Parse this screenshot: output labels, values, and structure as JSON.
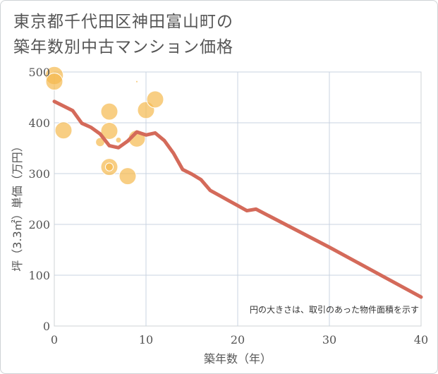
{
  "title_lines": [
    "東京都千代田区神田富山町の",
    "築年数別中古マンション価格"
  ],
  "chart_data": {
    "type": "scatter+line",
    "title": "東京都千代田区神田富山町の築年数別中古マンション価格",
    "xlabel": "築年数（年）",
    "ylabel": "坪（3.3㎡）単価（万円）",
    "xlim": [
      0,
      40
    ],
    "ylim": [
      0,
      500
    ],
    "x_ticks": [
      0,
      10,
      20,
      30,
      40
    ],
    "y_ticks": [
      0,
      100,
      200,
      300,
      400,
      500
    ],
    "grid": true,
    "note": "円の大きさは、取引のあった物件面積を示す",
    "colors": {
      "bubble": "#f5b94f",
      "line": "#d46a5a"
    },
    "bubbles": [
      {
        "x": 0,
        "y": 493,
        "size": 3.2
      },
      {
        "x": 0,
        "y": 481,
        "size": 3.0
      },
      {
        "x": 1,
        "y": 385,
        "size": 3.0
      },
      {
        "x": 5,
        "y": 362,
        "size": 1.6
      },
      {
        "x": 6,
        "y": 422,
        "size": 3.0
      },
      {
        "x": 6,
        "y": 384,
        "size": 3.0
      },
      {
        "x": 6,
        "y": 313,
        "size": 3.0
      },
      {
        "x": 6,
        "y": 313,
        "size": 1.4
      },
      {
        "x": 7,
        "y": 366,
        "size": 1.0
      },
      {
        "x": 8,
        "y": 295,
        "size": 3.0
      },
      {
        "x": 9,
        "y": 481,
        "size": 0.4
      },
      {
        "x": 9,
        "y": 369,
        "size": 3.0
      },
      {
        "x": 10,
        "y": 425,
        "size": 3.0
      },
      {
        "x": 11,
        "y": 446,
        "size": 3.0
      }
    ],
    "trend": {
      "x": [
        0,
        1,
        2,
        3,
        4,
        5,
        6,
        7,
        8,
        9,
        10,
        11,
        12,
        13,
        14,
        15,
        16,
        17,
        18,
        19,
        20,
        21,
        22,
        30,
        40
      ],
      "y": [
        442,
        433,
        424,
        399,
        391,
        378,
        355,
        351,
        364,
        382,
        376,
        380,
        365,
        340,
        308,
        299,
        288,
        267,
        257,
        247,
        237,
        227,
        230,
        155,
        57
      ]
    }
  }
}
